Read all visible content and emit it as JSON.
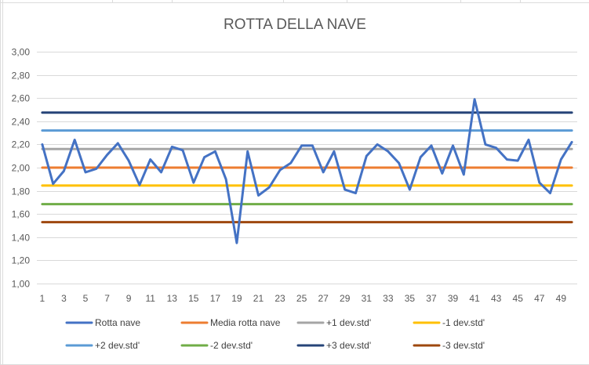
{
  "chart_data": {
    "type": "line",
    "title": "ROTTA DELLA NAVE",
    "xlabel": "",
    "ylabel": "",
    "ylim": [
      1.0,
      3.0
    ],
    "yticks": [
      "1,00",
      "1,20",
      "1,40",
      "1,60",
      "1,80",
      "2,00",
      "2,20",
      "2,40",
      "2,60",
      "2,80",
      "3,00"
    ],
    "xtick_labels": [
      "1",
      "3",
      "5",
      "7",
      "9",
      "11",
      "13",
      "15",
      "17",
      "19",
      "21",
      "23",
      "25",
      "27",
      "29",
      "31",
      "33",
      "35",
      "37",
      "39",
      "41",
      "43",
      "45",
      "47",
      "49"
    ],
    "x": [
      1,
      2,
      3,
      4,
      5,
      6,
      7,
      8,
      9,
      10,
      11,
      12,
      13,
      14,
      15,
      16,
      17,
      18,
      19,
      20,
      21,
      22,
      23,
      24,
      25,
      26,
      27,
      28,
      29,
      30,
      31,
      32,
      33,
      34,
      35,
      36,
      37,
      38,
      39,
      40,
      41,
      42,
      43,
      44,
      45,
      46,
      47,
      48,
      49,
      50
    ],
    "grid": true,
    "legend_position": "bottom",
    "series": [
      {
        "name": "Rotta nave",
        "color": "#4472c4",
        "width": 3,
        "values": [
          2.2,
          1.86,
          1.97,
          2.24,
          1.96,
          1.99,
          2.11,
          2.21,
          2.06,
          1.85,
          2.07,
          1.96,
          2.18,
          2.15,
          1.87,
          2.09,
          2.14,
          1.9,
          1.35,
          2.14,
          1.76,
          1.83,
          1.98,
          2.04,
          2.19,
          2.19,
          1.96,
          2.14,
          1.81,
          1.78,
          2.1,
          2.2,
          2.14,
          2.04,
          1.81,
          2.09,
          2.19,
          1.95,
          2.19,
          1.94,
          2.59,
          2.2,
          2.17,
          2.07,
          2.06,
          2.24,
          1.87,
          1.78,
          2.07,
          2.22
        ]
      },
      {
        "name": "Media rotta nave",
        "color": "#ed7d31",
        "width": 3,
        "constant": 2.0
      },
      {
        "name": "+1 dev.std'",
        "color": "#a5a5a5",
        "width": 3,
        "constant": 2.16
      },
      {
        "name": "-1 dev.std'",
        "color": "#ffc000",
        "width": 3,
        "constant": 1.845
      },
      {
        "name": "+2 dev.std'",
        "color": "#5b9bd5",
        "width": 3,
        "constant": 2.32
      },
      {
        "name": "-2 dev.std'",
        "color": "#70ad47",
        "width": 3,
        "constant": 1.685
      },
      {
        "name": "+3 dev.std'",
        "color": "#264478",
        "width": 3,
        "constant": 2.475
      },
      {
        "name": "-3 dev.std'",
        "color": "#9e480e",
        "width": 3,
        "constant": 1.53
      }
    ]
  }
}
